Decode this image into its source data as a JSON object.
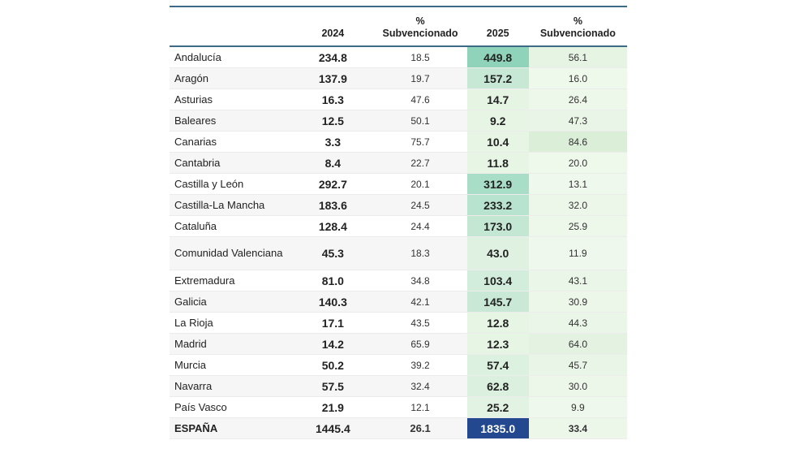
{
  "headers": {
    "region": "",
    "y2024": "2024",
    "pct1": "%\nSubvencionado",
    "y2025": "2025",
    "pct2": "%\nSubvencionado"
  },
  "colors": {
    "rule": "#3d6b85",
    "heat_low": "#eaf6e6",
    "heat_high": "#8fd3bb",
    "total_highlight": "#23488f"
  },
  "rows": [
    {
      "region": "Andalucía",
      "v2024": "234.8",
      "p2024": "18.5",
      "v2025": "449.8",
      "p2025": "56.1"
    },
    {
      "region": "Aragón",
      "v2024": "137.9",
      "p2024": "19.7",
      "v2025": "157.2",
      "p2025": "16.0"
    },
    {
      "region": "Asturias",
      "v2024": "16.3",
      "p2024": "47.6",
      "v2025": "14.7",
      "p2025": "26.4"
    },
    {
      "region": "Baleares",
      "v2024": "12.5",
      "p2024": "50.1",
      "v2025": "9.2",
      "p2025": "47.3"
    },
    {
      "region": "Canarias",
      "v2024": "3.3",
      "p2024": "75.7",
      "v2025": "10.4",
      "p2025": "84.6"
    },
    {
      "region": "Cantabria",
      "v2024": "8.4",
      "p2024": "22.7",
      "v2025": "11.8",
      "p2025": "20.0"
    },
    {
      "region": "Castilla y León",
      "v2024": "292.7",
      "p2024": "20.1",
      "v2025": "312.9",
      "p2025": "13.1"
    },
    {
      "region": "Castilla-La Mancha",
      "v2024": "183.6",
      "p2024": "24.5",
      "v2025": "233.2",
      "p2025": "32.0"
    },
    {
      "region": "Cataluña",
      "v2024": "128.4",
      "p2024": "24.4",
      "v2025": "173.0",
      "p2025": "25.9"
    },
    {
      "region": "Comunidad Valenciana",
      "v2024": "45.3",
      "p2024": "18.3",
      "v2025": "43.0",
      "p2025": "11.9"
    },
    {
      "region": "Extremadura",
      "v2024": "81.0",
      "p2024": "34.8",
      "v2025": "103.4",
      "p2025": "43.1"
    },
    {
      "region": "Galicia",
      "v2024": "140.3",
      "p2024": "42.1",
      "v2025": "145.7",
      "p2025": "30.9"
    },
    {
      "region": "La Rioja",
      "v2024": "17.1",
      "p2024": "43.5",
      "v2025": "12.8",
      "p2025": "44.3"
    },
    {
      "region": "Madrid",
      "v2024": "14.2",
      "p2024": "65.9",
      "v2025": "12.3",
      "p2025": "64.0"
    },
    {
      "region": "Murcia",
      "v2024": "50.2",
      "p2024": "39.2",
      "v2025": "57.4",
      "p2025": "45.7"
    },
    {
      "region": "Navarra",
      "v2024": "57.5",
      "p2024": "32.4",
      "v2025": "62.8",
      "p2025": "30.0"
    },
    {
      "region": "País Vasco",
      "v2024": "21.9",
      "p2024": "12.1",
      "v2025": "25.2",
      "p2025": "9.9"
    }
  ],
  "total": {
    "region": "ESPAÑA",
    "v2024": "1445.4",
    "p2024": "26.1",
    "v2025": "1835.0",
    "p2025": "33.4"
  }
}
